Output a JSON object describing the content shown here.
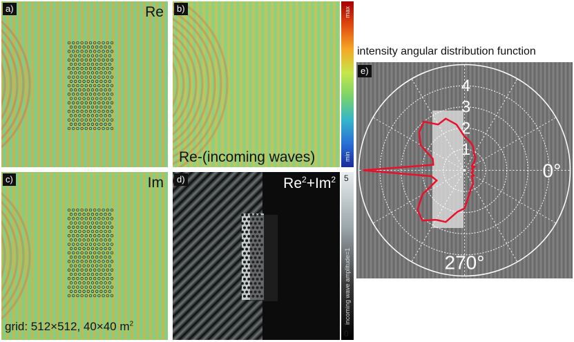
{
  "panels": {
    "a": {
      "tag": "a)",
      "label": "Re"
    },
    "b": {
      "tag": "b)",
      "label": "Re-(incoming waves)",
      "colorbar": {
        "max": "max",
        "min": "min"
      }
    },
    "c": {
      "tag": "c)",
      "label": "Im",
      "grid_prefix": "grid: 512×512, 40×40 m",
      "grid_sup": "2"
    },
    "d": {
      "tag": "d)",
      "label_main": "Re",
      "label_sup1": "2",
      "label_plus": "+Im",
      "label_sup2": "2",
      "colorbar": {
        "max": "5",
        "min": "0",
        "axis_label": "incoming wave amplitude=1"
      }
    },
    "e": {
      "tag": "e)",
      "title": "intensity angular distribution function",
      "radial_labels": [
        "4",
        "3",
        "2",
        "1"
      ],
      "angle_labels": [
        "0°",
        "270°"
      ]
    }
  },
  "colors": {
    "curve": "#e8102a",
    "field": "#9be35a",
    "background": "#ffffff"
  },
  "chart_data": {
    "type": "polar-line",
    "title": "intensity angular distribution function",
    "r_ticks": [
      1,
      2,
      3,
      4
    ],
    "angle_ticks_deg": [
      0,
      270
    ],
    "series": [
      {
        "angles_deg": [
          0,
          10,
          20,
          30,
          40,
          50,
          60,
          70,
          80,
          90,
          100,
          110,
          120,
          130,
          140,
          150,
          160,
          170,
          180,
          190,
          200,
          210,
          220,
          230,
          240,
          250,
          260,
          270,
          280,
          290,
          300,
          310,
          320,
          330,
          340,
          350
        ],
        "r": [
          0.4,
          0.35,
          0.5,
          0.4,
          0.6,
          0.8,
          0.9,
          1.2,
          1.4,
          1.6,
          2.2,
          2.6,
          2.5,
          3.0,
          2.8,
          2.4,
          1.6,
          1.5,
          4.8,
          1.6,
          1.4,
          2.3,
          2.9,
          3.1,
          2.7,
          2.6,
          2.0,
          1.8,
          1.2,
          0.9,
          0.8,
          0.6,
          0.45,
          0.5,
          0.35,
          0.4
        ]
      }
    ]
  }
}
